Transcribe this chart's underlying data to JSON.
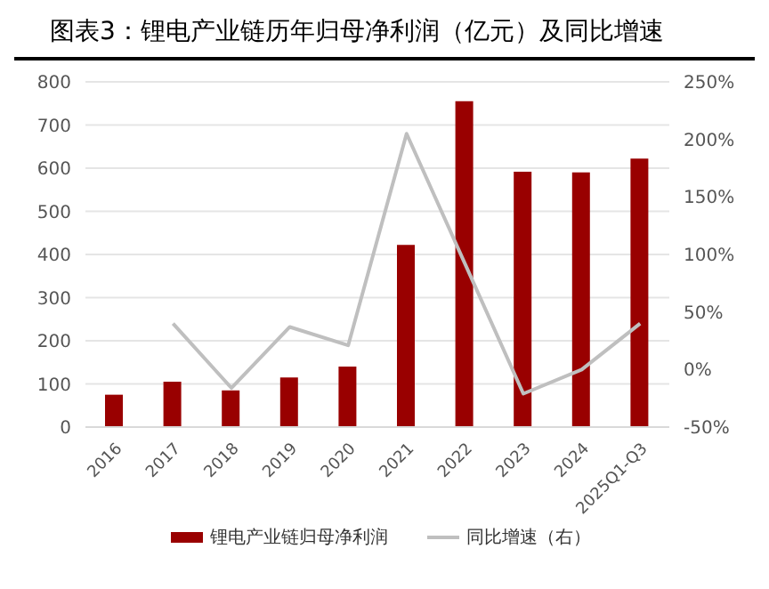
{
  "chart_data": {
    "type": "bar",
    "title": "图表3：锂电产业链历年归母净利润（亿元）及同比增速",
    "categories": [
      "2016",
      "2017",
      "2018",
      "2019",
      "2020",
      "2021",
      "2022",
      "2023",
      "2024",
      "2025Q1-Q3"
    ],
    "series": [
      {
        "name": "锂电产业链归母净利润",
        "color": "#990000",
        "values": [
          75,
          105,
          85,
          115,
          140,
          422,
          755,
          592,
          590,
          622
        ]
      },
      {
        "name": "同比增速（右）",
        "type": "line",
        "axis": "y2",
        "color": "#bfbfbf",
        "values": [
          null,
          40,
          -16,
          37,
          21,
          205,
          92,
          -21,
          0,
          40
        ]
      }
    ],
    "ylim": [
      0,
      800
    ],
    "yticks": [
      0,
      100,
      200,
      300,
      400,
      500,
      600,
      700,
      800
    ],
    "y2lim": [
      -50,
      250
    ],
    "y2ticks": [
      {
        "value": -50,
        "label": "-50%"
      },
      {
        "value": 0,
        "label": "0%"
      },
      {
        "value": 50,
        "label": "50%"
      },
      {
        "value": 100,
        "label": "100%"
      },
      {
        "value": 150,
        "label": "150%"
      },
      {
        "value": 200,
        "label": "200%"
      },
      {
        "value": 250,
        "label": "250%"
      }
    ],
    "grid": "y",
    "legend": "bottom",
    "marker": "none",
    "line_style": "solid"
  }
}
